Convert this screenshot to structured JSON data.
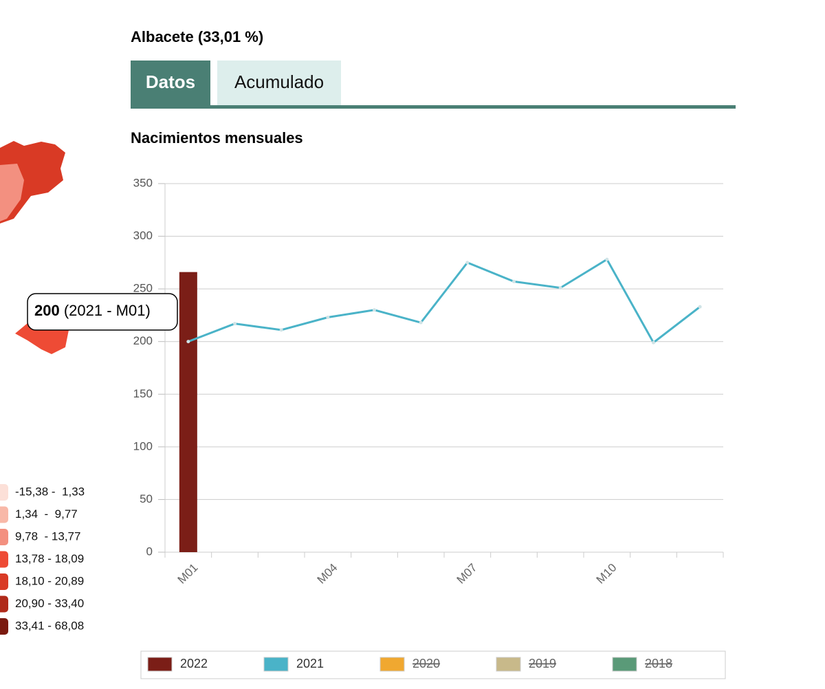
{
  "header": {
    "title": "Albacete (33,01 %)"
  },
  "tabs": [
    {
      "label": "Datos",
      "active": true
    },
    {
      "label": "Acumulado",
      "active": false
    }
  ],
  "map_legend": [
    {
      "label": "-15,38 -  1,33",
      "color": "#fce0d8"
    },
    {
      "label": "1,34  -  9,77",
      "color": "#f8b8a8"
    },
    {
      "label": "9,78  - 13,77",
      "color": "#f39080"
    },
    {
      "label": "13,78 - 18,09",
      "color": "#ee4b35"
    },
    {
      "label": "18,10 - 20,89",
      "color": "#d93a25"
    },
    {
      "label": "20,90 - 33,40",
      "color": "#b02a1a"
    },
    {
      "label": "33,41 - 68,08",
      "color": "#7a1a10"
    }
  ],
  "tooltip": {
    "value": "200",
    "detail": "(2021 - M01)"
  },
  "chart_data": {
    "type": "bar",
    "title": "Nacimientos mensuales",
    "categories": [
      "M01",
      null,
      null,
      "M04",
      null,
      null,
      "M07",
      null,
      null,
      "M10",
      null,
      null
    ],
    "series": [
      {
        "name": "2022",
        "color": "#7b1e17",
        "type": "bar",
        "visible": true,
        "values": [
          266,
          null,
          null,
          null,
          null,
          null,
          null,
          null,
          null,
          null,
          null,
          null
        ]
      },
      {
        "name": "2021",
        "color": "#4ab3c8",
        "type": "line",
        "visible": true,
        "values": [
          200,
          217,
          211,
          223,
          230,
          218,
          275,
          257,
          251,
          278,
          199,
          233
        ]
      },
      {
        "name": "2020",
        "color": "#f0a830",
        "visible": false
      },
      {
        "name": "2019",
        "color": "#c8b98a",
        "visible": false
      },
      {
        "name": "2018",
        "color": "#5a9a78",
        "visible": false
      }
    ],
    "ylim": [
      0,
      350
    ],
    "yticks": [
      0,
      50,
      100,
      150,
      200,
      250,
      300,
      350
    ],
    "grid": true,
    "legend": "bottom"
  }
}
